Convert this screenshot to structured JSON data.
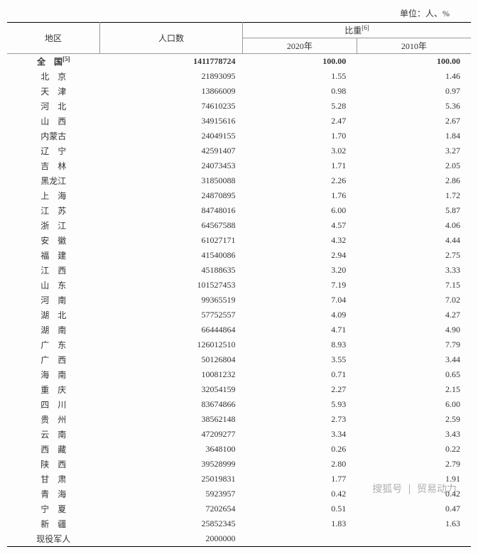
{
  "unit_label": "单位：人、%",
  "header": {
    "region": "地区",
    "population": "人口数",
    "weight_group": "比重",
    "weight_sup": "[6]",
    "y2020": "2020年",
    "y2010": "2010年"
  },
  "total_row": {
    "region": "全　国",
    "sup": "[5]",
    "population": "1411778724",
    "w2020": "100.00",
    "w2010": "100.00"
  },
  "rows": [
    {
      "region": "北　京",
      "population": "21893095",
      "w2020": "1.55",
      "w2010": "1.46"
    },
    {
      "region": "天　津",
      "population": "13866009",
      "w2020": "0.98",
      "w2010": "0.97"
    },
    {
      "region": "河　北",
      "population": "74610235",
      "w2020": "5.28",
      "w2010": "5.36"
    },
    {
      "region": "山　西",
      "population": "34915616",
      "w2020": "2.47",
      "w2010": "2.67"
    },
    {
      "region": "内蒙古",
      "population": "24049155",
      "w2020": "1.70",
      "w2010": "1.84"
    },
    {
      "region": "辽　宁",
      "population": "42591407",
      "w2020": "3.02",
      "w2010": "3.27"
    },
    {
      "region": "吉　林",
      "population": "24073453",
      "w2020": "1.71",
      "w2010": "2.05"
    },
    {
      "region": "黑龙江",
      "population": "31850088",
      "w2020": "2.26",
      "w2010": "2.86"
    },
    {
      "region": "上　海",
      "population": "24870895",
      "w2020": "1.76",
      "w2010": "1.72"
    },
    {
      "region": "江　苏",
      "population": "84748016",
      "w2020": "6.00",
      "w2010": "5.87"
    },
    {
      "region": "浙　江",
      "population": "64567588",
      "w2020": "4.57",
      "w2010": "4.06"
    },
    {
      "region": "安　徽",
      "population": "61027171",
      "w2020": "4.32",
      "w2010": "4.44"
    },
    {
      "region": "福　建",
      "population": "41540086",
      "w2020": "2.94",
      "w2010": "2.75"
    },
    {
      "region": "江　西",
      "population": "45188635",
      "w2020": "3.20",
      "w2010": "3.33"
    },
    {
      "region": "山　东",
      "population": "101527453",
      "w2020": "7.19",
      "w2010": "7.15"
    },
    {
      "region": "河　南",
      "population": "99365519",
      "w2020": "7.04",
      "w2010": "7.02"
    },
    {
      "region": "湖　北",
      "population": "57752557",
      "w2020": "4.09",
      "w2010": "4.27"
    },
    {
      "region": "湖　南",
      "population": "66444864",
      "w2020": "4.71",
      "w2010": "4.90"
    },
    {
      "region": "广　东",
      "population": "126012510",
      "w2020": "8.93",
      "w2010": "7.79"
    },
    {
      "region": "广　西",
      "population": "50126804",
      "w2020": "3.55",
      "w2010": "3.44"
    },
    {
      "region": "海　南",
      "population": "10081232",
      "w2020": "0.71",
      "w2010": "0.65"
    },
    {
      "region": "重　庆",
      "population": "32054159",
      "w2020": "2.27",
      "w2010": "2.15"
    },
    {
      "region": "四　川",
      "population": "83674866",
      "w2020": "5.93",
      "w2010": "6.00"
    },
    {
      "region": "贵　州",
      "population": "38562148",
      "w2020": "2.73",
      "w2010": "2.59"
    },
    {
      "region": "云　南",
      "population": "47209277",
      "w2020": "3.34",
      "w2010": "3.43"
    },
    {
      "region": "西　藏",
      "population": "3648100",
      "w2020": "0.26",
      "w2010": "0.22"
    },
    {
      "region": "陕　西",
      "population": "39528999",
      "w2020": "2.80",
      "w2010": "2.79"
    },
    {
      "region": "甘　肃",
      "population": "25019831",
      "w2020": "1.77",
      "w2010": "1.91"
    },
    {
      "region": "青　海",
      "population": "5923957",
      "w2020": "0.42",
      "w2010": "0.42"
    },
    {
      "region": "宁　夏",
      "population": "7202654",
      "w2020": "0.51",
      "w2010": "0.47"
    },
    {
      "region": "新　疆",
      "population": "25852345",
      "w2020": "1.83",
      "w2010": "1.63"
    },
    {
      "region": "现役军人",
      "population": "2000000",
      "w2020": "",
      "w2010": ""
    }
  ],
  "watermark": {
    "source": "搜狐号",
    "author": "贸易动力"
  }
}
